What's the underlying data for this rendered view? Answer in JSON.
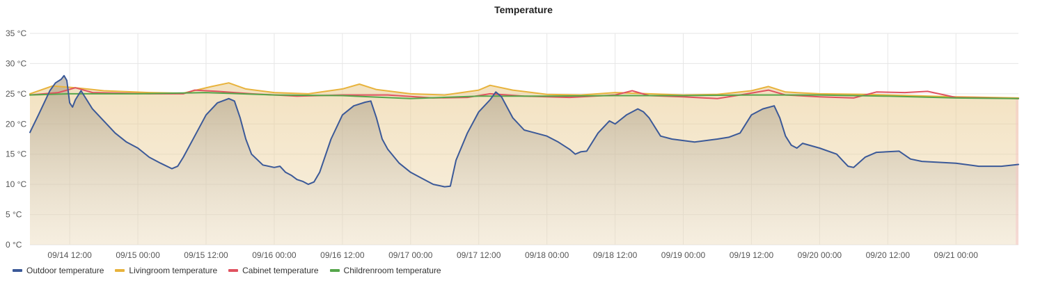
{
  "chart_data": {
    "type": "line",
    "title": "Temperature",
    "y_unit": "°C",
    "ylim": [
      0,
      35
    ],
    "y_ticks": [
      "0 °C",
      "5 °C",
      "10 °C",
      "15 °C",
      "20 °C",
      "25 °C",
      "30 °C",
      "35 °C"
    ],
    "x_ticks": [
      "09/14 12:00",
      "09/15 00:00",
      "09/15 12:00",
      "09/16 00:00",
      "09/16 12:00",
      "09/17 00:00",
      "09/17 12:00",
      "09/18 00:00",
      "09/18 12:00",
      "09/19 00:00",
      "09/19 12:00",
      "09/20 00:00",
      "09/20 12:00",
      "09/21 00:00"
    ],
    "xlim": [
      "09/14 05:00",
      "09/21 11:00"
    ],
    "grid": true,
    "legend_position": "bottom-left",
    "series": [
      {
        "name": "Outdoor temperature",
        "color": "#3b5998",
        "points": [
          [
            "09/14 05:00",
            18.6
          ],
          [
            "09/14 06:30",
            21.5
          ],
          [
            "09/14 07:30",
            23.5
          ],
          [
            "09/14 08:30",
            25.5
          ],
          [
            "09/14 09:30",
            26.8
          ],
          [
            "09/14 10:30",
            27.4
          ],
          [
            "09/14 11:00",
            28.0
          ],
          [
            "09/14 11:30",
            27.2
          ],
          [
            "09/14 12:00",
            23.5
          ],
          [
            "09/14 12:30",
            22.8
          ],
          [
            "09/14 13:00",
            24.0
          ],
          [
            "09/14 14:00",
            25.5
          ],
          [
            "09/14 15:00",
            24.0
          ],
          [
            "09/14 16:00",
            22.5
          ],
          [
            "09/14 18:00",
            20.5
          ],
          [
            "09/14 20:00",
            18.5
          ],
          [
            "09/14 22:00",
            17.0
          ],
          [
            "09/15 00:00",
            16.0
          ],
          [
            "09/15 02:00",
            14.5
          ],
          [
            "09/15 04:00",
            13.5
          ],
          [
            "09/15 06:00",
            12.6
          ],
          [
            "09/15 07:00",
            13.0
          ],
          [
            "09/15 08:00",
            14.5
          ],
          [
            "09/15 10:00",
            18.0
          ],
          [
            "09/15 12:00",
            21.5
          ],
          [
            "09/15 14:00",
            23.5
          ],
          [
            "09/15 16:00",
            24.2
          ],
          [
            "09/15 17:00",
            23.8
          ],
          [
            "09/15 18:00",
            21.0
          ],
          [
            "09/15 19:00",
            17.5
          ],
          [
            "09/15 20:00",
            15.0
          ],
          [
            "09/15 22:00",
            13.2
          ],
          [
            "09/16 00:00",
            12.8
          ],
          [
            "09/16 01:00",
            13.0
          ],
          [
            "09/16 02:00",
            12.0
          ],
          [
            "09/16 03:00",
            11.5
          ],
          [
            "09/16 04:00",
            10.8
          ],
          [
            "09/16 05:00",
            10.5
          ],
          [
            "09/16 06:00",
            10.0
          ],
          [
            "09/16 07:00",
            10.4
          ],
          [
            "09/16 08:00",
            12.0
          ],
          [
            "09/16 10:00",
            17.5
          ],
          [
            "09/16 12:00",
            21.5
          ],
          [
            "09/16 14:00",
            23.0
          ],
          [
            "09/16 16:00",
            23.6
          ],
          [
            "09/16 17:00",
            23.8
          ],
          [
            "09/16 18:00",
            21.0
          ],
          [
            "09/16 19:00",
            17.5
          ],
          [
            "09/16 20:00",
            15.8
          ],
          [
            "09/16 22:00",
            13.5
          ],
          [
            "09/17 00:00",
            12.0
          ],
          [
            "09/17 02:00",
            11.0
          ],
          [
            "09/17 04:00",
            10.0
          ],
          [
            "09/17 06:00",
            9.6
          ],
          [
            "09/17 07:00",
            9.7
          ],
          [
            "09/17 08:00",
            14.0
          ],
          [
            "09/17 10:00",
            18.5
          ],
          [
            "09/17 12:00",
            22.0
          ],
          [
            "09/17 14:00",
            24.0
          ],
          [
            "09/17 15:00",
            25.3
          ],
          [
            "09/17 16:00",
            24.5
          ],
          [
            "09/17 18:00",
            21.0
          ],
          [
            "09/17 20:00",
            19.0
          ],
          [
            "09/17 22:00",
            18.5
          ],
          [
            "09/18 00:00",
            18.0
          ],
          [
            "09/18 02:00",
            17.0
          ],
          [
            "09/18 04:00",
            15.8
          ],
          [
            "09/18 05:00",
            15.0
          ],
          [
            "09/18 06:00",
            15.4
          ],
          [
            "09/18 07:00",
            15.5
          ],
          [
            "09/18 09:00",
            18.5
          ],
          [
            "09/18 11:00",
            20.5
          ],
          [
            "09/18 12:00",
            20.0
          ],
          [
            "09/18 14:00",
            21.5
          ],
          [
            "09/18 16:00",
            22.5
          ],
          [
            "09/18 17:00",
            22.0
          ],
          [
            "09/18 18:00",
            21.0
          ],
          [
            "09/18 20:00",
            18.0
          ],
          [
            "09/18 22:00",
            17.5
          ],
          [
            "09/19 02:00",
            17.0
          ],
          [
            "09/19 06:00",
            17.5
          ],
          [
            "09/19 08:00",
            17.8
          ],
          [
            "09/19 10:00",
            18.5
          ],
          [
            "09/19 12:00",
            21.5
          ],
          [
            "09/19 14:00",
            22.5
          ],
          [
            "09/19 16:00",
            23.0
          ],
          [
            "09/19 17:00",
            21.0
          ],
          [
            "09/19 18:00",
            18.0
          ],
          [
            "09/19 19:00",
            16.5
          ],
          [
            "09/19 20:00",
            16.0
          ],
          [
            "09/19 21:00",
            16.8
          ],
          [
            "09/20 00:00",
            16.0
          ],
          [
            "09/20 03:00",
            15.0
          ],
          [
            "09/20 04:00",
            14.0
          ],
          [
            "09/20 05:00",
            13.0
          ],
          [
            "09/20 06:00",
            12.8
          ],
          [
            "09/20 08:00",
            14.5
          ],
          [
            "09/20 10:00",
            15.3
          ],
          [
            "09/20 14:00",
            15.5
          ],
          [
            "09/20 16:00",
            14.2
          ],
          [
            "09/20 18:00",
            13.8
          ],
          [
            "09/21 00:00",
            13.5
          ],
          [
            "09/21 04:00",
            13.0
          ],
          [
            "09/21 08:00",
            13.0
          ],
          [
            "09/21 11:00",
            13.3
          ]
        ]
      },
      {
        "name": "Livingroom temperature",
        "color": "#e8b33c",
        "points": [
          [
            "09/14 05:00",
            25.0
          ],
          [
            "09/14 09:00",
            26.3
          ],
          [
            "09/14 13:00",
            26.0
          ],
          [
            "09/14 18:00",
            25.5
          ],
          [
            "09/15 02:00",
            25.2
          ],
          [
            "09/15 08:00",
            25.1
          ],
          [
            "09/15 13:00",
            26.2
          ],
          [
            "09/15 16:00",
            26.8
          ],
          [
            "09/15 19:00",
            25.8
          ],
          [
            "09/16 00:00",
            25.2
          ],
          [
            "09/16 06:00",
            25.0
          ],
          [
            "09/16 12:00",
            25.8
          ],
          [
            "09/16 15:00",
            26.6
          ],
          [
            "09/16 18:00",
            25.7
          ],
          [
            "09/17 00:00",
            25.0
          ],
          [
            "09/17 06:00",
            24.8
          ],
          [
            "09/17 12:00",
            25.6
          ],
          [
            "09/17 14:00",
            26.4
          ],
          [
            "09/17 18:00",
            25.6
          ],
          [
            "09/18 00:00",
            24.9
          ],
          [
            "09/18 06:00",
            24.8
          ],
          [
            "09/18 12:00",
            25.2
          ],
          [
            "09/18 18:00",
            25.0
          ],
          [
            "09/19 00:00",
            24.8
          ],
          [
            "09/19 06:00",
            24.9
          ],
          [
            "09/19 12:00",
            25.5
          ],
          [
            "09/19 15:00",
            26.2
          ],
          [
            "09/19 18:00",
            25.3
          ],
          [
            "09/20 00:00",
            25.0
          ],
          [
            "09/20 08:00",
            24.9
          ],
          [
            "09/20 16:00",
            24.7
          ],
          [
            "09/21 00:00",
            24.5
          ],
          [
            "09/21 11:00",
            24.3
          ]
        ]
      },
      {
        "name": "Cabinet temperature",
        "color": "#e05260",
        "points": [
          [
            "09/14 05:00",
            24.8
          ],
          [
            "09/14 10:00",
            25.2
          ],
          [
            "09/14 13:00",
            26.0
          ],
          [
            "09/14 16:00",
            25.2
          ],
          [
            "09/15 02:00",
            25.0
          ],
          [
            "09/15 08:00",
            25.0
          ],
          [
            "09/15 10:00",
            25.6
          ],
          [
            "09/15 14:00",
            25.4
          ],
          [
            "09/15 20:00",
            25.0
          ],
          [
            "09/16 04:00",
            24.6
          ],
          [
            "09/16 12:00",
            24.8
          ],
          [
            "09/16 20:00",
            24.8
          ],
          [
            "09/17 04:00",
            24.3
          ],
          [
            "09/17 10:00",
            24.4
          ],
          [
            "09/17 14:00",
            25.0
          ],
          [
            "09/17 20:00",
            24.6
          ],
          [
            "09/18 04:00",
            24.4
          ],
          [
            "09/18 12:00",
            24.8
          ],
          [
            "09/18 15:00",
            25.5
          ],
          [
            "09/18 18:00",
            24.7
          ],
          [
            "09/19 00:00",
            24.5
          ],
          [
            "09/19 06:00",
            24.2
          ],
          [
            "09/19 10:00",
            24.8
          ],
          [
            "09/19 15:00",
            25.6
          ],
          [
            "09/19 18:00",
            24.8
          ],
          [
            "09/20 00:00",
            24.5
          ],
          [
            "09/20 06:00",
            24.3
          ],
          [
            "09/20 10:00",
            25.3
          ],
          [
            "09/20 15:00",
            25.2
          ],
          [
            "09/20 19:00",
            25.4
          ],
          [
            "09/21 00:00",
            24.4
          ],
          [
            "09/21 11:00",
            24.2
          ]
        ]
      },
      {
        "name": "Childrenroom temperature",
        "color": "#56a64b",
        "points": [
          [
            "09/14 05:00",
            24.8
          ],
          [
            "09/14 12:00",
            25.0
          ],
          [
            "09/15 00:00",
            25.0
          ],
          [
            "09/15 12:00",
            25.2
          ],
          [
            "09/16 00:00",
            24.8
          ],
          [
            "09/16 12:00",
            24.7
          ],
          [
            "09/17 00:00",
            24.2
          ],
          [
            "09/17 12:00",
            24.6
          ],
          [
            "09/18 00:00",
            24.6
          ],
          [
            "09/18 12:00",
            24.7
          ],
          [
            "09/19 00:00",
            24.7
          ],
          [
            "09/19 12:00",
            24.8
          ],
          [
            "09/20 00:00",
            24.8
          ],
          [
            "09/20 12:00",
            24.6
          ],
          [
            "09/21 00:00",
            24.3
          ],
          [
            "09/21 11:00",
            24.2
          ]
        ]
      }
    ]
  }
}
